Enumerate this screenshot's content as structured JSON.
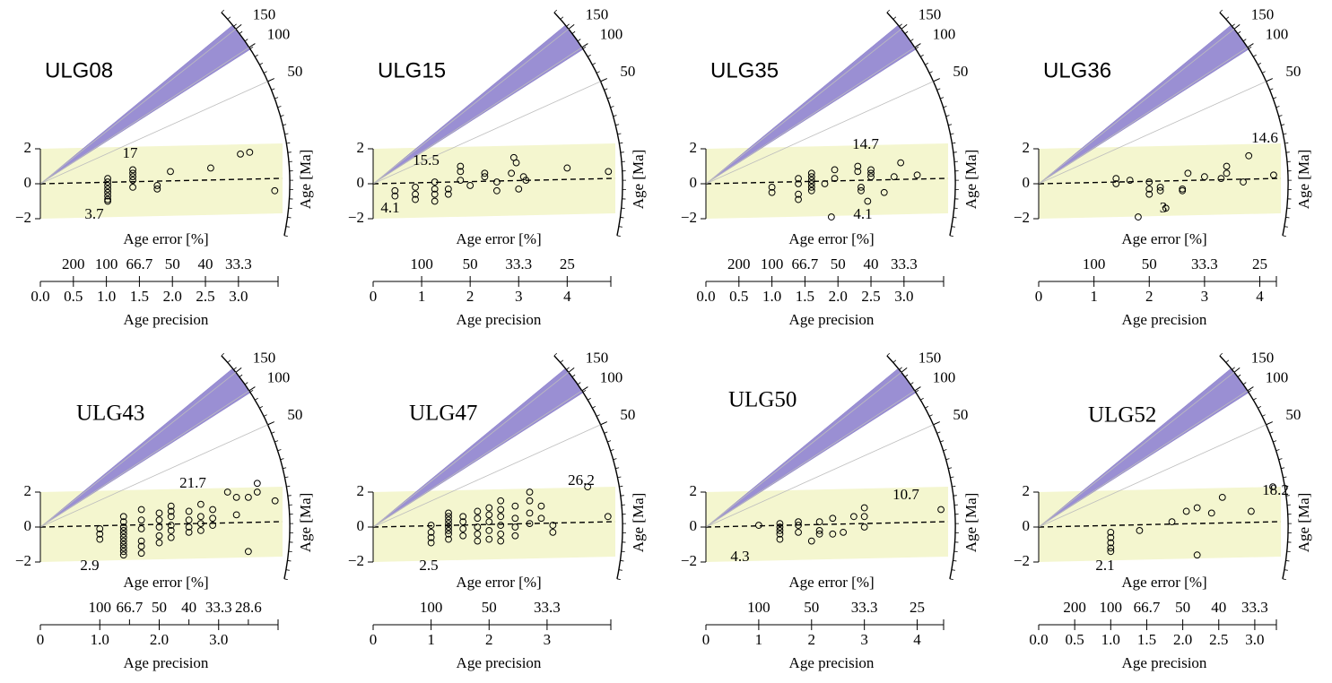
{
  "chart_data": [
    {
      "type": "radial",
      "title": "ULG08",
      "xlabel": "Age precision",
      "error_label": "Age error [%]",
      "ylabel": "Age [Ma]",
      "xlim": [
        0,
        3.6
      ],
      "xticks": [
        {
          "value": 0,
          "label": "0.0"
        },
        0.5,
        {
          "value": 1,
          "label": "1.0"
        },
        1.5,
        {
          "value": 2,
          "label": "2.0"
        },
        2.5,
        {
          "value": 3,
          "label": "3.0"
        }
      ],
      "error_ticks": [
        {
          "value": 0.5,
          "label": "200"
        },
        {
          "value": 1,
          "label": "100"
        },
        {
          "value": 1.5,
          "label": "66.7"
        },
        {
          "value": 2,
          "label": "50"
        },
        {
          "value": 2.5,
          "label": "40"
        },
        {
          "value": 3,
          "label": "33.3"
        }
      ],
      "ylim": [
        -2,
        2
      ],
      "yticks": [
        2,
        0,
        {
          "value": -2,
          "label": "−2"
        }
      ],
      "rlim": [
        3,
        170
      ],
      "rticks": [
        150,
        100,
        50
      ],
      "annotations": [
        "17",
        "3.7"
      ],
      "x": [
        1.02,
        1.02,
        1.02,
        1.02,
        1.02,
        1.02,
        1.02,
        1.02,
        1.4,
        1.4,
        1.4,
        1.4,
        1.4,
        1.77,
        1.77,
        1.97,
        2.58,
        3.03,
        3.17,
        3.55
      ],
      "y": [
        0.3,
        0.1,
        -0.1,
        -0.3,
        -0.5,
        -0.7,
        -0.9,
        -1.0,
        0.8,
        0.6,
        0.4,
        0.2,
        -0.2,
        -0.1,
        -0.3,
        0.7,
        0.9,
        1.7,
        1.8,
        -0.4
      ]
    },
    {
      "type": "radial",
      "title": "ULG15",
      "xlabel": "Age precision",
      "error_label": "Age error [%]",
      "ylabel": "Age [Ma]",
      "xlim": [
        0,
        4.9
      ],
      "xticks": [
        0,
        1,
        2,
        3,
        4
      ],
      "error_ticks": [
        {
          "value": 1,
          "label": "100"
        },
        {
          "value": 2,
          "label": "50"
        },
        {
          "value": 3,
          "label": "33.3"
        },
        {
          "value": 4,
          "label": "25"
        }
      ],
      "ylim": [
        -2,
        2
      ],
      "yticks": [
        2,
        0,
        {
          "value": -2,
          "label": "−2"
        }
      ],
      "rlim": [
        3,
        170
      ],
      "rticks": [
        150,
        100,
        50
      ],
      "annotations": [
        "15.5",
        "4.1"
      ],
      "x": [
        0.45,
        0.45,
        0.87,
        0.87,
        0.87,
        1.27,
        1.27,
        1.27,
        1.27,
        1.55,
        1.55,
        1.8,
        1.8,
        1.8,
        2.0,
        2.3,
        2.3,
        2.55,
        2.55,
        2.85,
        2.9,
        2.95,
        3.0,
        3.1,
        3.15,
        4.0,
        4.85
      ],
      "y": [
        -0.4,
        -0.7,
        -0.2,
        -0.6,
        -0.9,
        0.1,
        -0.3,
        -0.6,
        -1.0,
        -0.3,
        -0.6,
        1.0,
        0.7,
        0.2,
        -0.1,
        0.4,
        0.6,
        0.1,
        -0.4,
        0.6,
        1.5,
        1.2,
        -0.3,
        0.4,
        0.2,
        0.9,
        0.7
      ]
    },
    {
      "type": "radial",
      "title": "ULG35",
      "xlabel": "Age precision",
      "error_label": "Age error [%]",
      "ylabel": "Age [Ma]",
      "xlim": [
        0,
        3.6
      ],
      "xticks": [
        {
          "value": 0,
          "label": "0.0"
        },
        0.5,
        {
          "value": 1,
          "label": "1.0"
        },
        1.5,
        {
          "value": 2,
          "label": "2.0"
        },
        2.5,
        {
          "value": 3,
          "label": "3.0"
        }
      ],
      "error_ticks": [
        {
          "value": 0.5,
          "label": "200"
        },
        {
          "value": 1,
          "label": "100"
        },
        {
          "value": 1.5,
          "label": "66.7"
        },
        {
          "value": 2,
          "label": "50"
        },
        {
          "value": 2.5,
          "label": "40"
        },
        {
          "value": 3,
          "label": "33.3"
        }
      ],
      "ylim": [
        -2,
        2
      ],
      "yticks": [
        2,
        0,
        {
          "value": -2,
          "label": "−2"
        }
      ],
      "rlim": [
        3,
        170
      ],
      "rticks": [
        150,
        100,
        50
      ],
      "annotations": [
        "14.7",
        "4.1"
      ],
      "x": [
        1.0,
        1.0,
        1.4,
        1.4,
        1.4,
        1.4,
        1.6,
        1.6,
        1.6,
        1.6,
        1.6,
        1.6,
        1.8,
        1.95,
        1.95,
        1.9,
        2.3,
        2.3,
        2.35,
        2.35,
        2.5,
        2.5,
        2.5,
        2.45,
        2.7,
        2.85,
        2.95,
        3.2
      ],
      "y": [
        -0.2,
        -0.5,
        0.3,
        0,
        -0.6,
        -0.9,
        0.6,
        0.4,
        0.2,
        0,
        -0.2,
        -0.4,
        0,
        0.8,
        0.3,
        -1.9,
        1.0,
        0.7,
        -0.2,
        -0.4,
        0.8,
        0.6,
        0.4,
        -1.0,
        -0.5,
        0.4,
        1.2,
        0.5
      ]
    },
    {
      "type": "radial",
      "title": "ULG36",
      "xlabel": "Age precision",
      "error_label": "Age error [%]",
      "ylabel": "Age [Ma]",
      "xlim": [
        0,
        4.3
      ],
      "xticks": [
        0,
        1,
        2,
        3,
        4
      ],
      "error_ticks": [
        {
          "value": 1,
          "label": "100"
        },
        {
          "value": 2,
          "label": "50"
        },
        {
          "value": 3,
          "label": "33.3"
        },
        {
          "value": 4,
          "label": "25"
        }
      ],
      "ylim": [
        -2,
        2
      ],
      "yticks": [
        2,
        0,
        {
          "value": -2,
          "label": "−2"
        }
      ],
      "rlim": [
        3,
        170
      ],
      "rticks": [
        150,
        100,
        50
      ],
      "annotations": [
        "14.6",
        "3"
      ],
      "x": [
        1.4,
        1.4,
        1.65,
        1.8,
        2.0,
        2.0,
        2.0,
        2.2,
        2.2,
        2.3,
        2.6,
        2.6,
        2.7,
        3.0,
        3.3,
        3.4,
        3.4,
        3.7,
        3.8,
        4.25
      ],
      "y": [
        0.3,
        0,
        0.2,
        -1.9,
        0.1,
        -0.3,
        -0.6,
        -0.2,
        -0.4,
        -1.4,
        -0.3,
        -0.4,
        0.6,
        0.4,
        0.3,
        0.6,
        1.0,
        0.1,
        1.6,
        0.5
      ]
    },
    {
      "type": "radial",
      "title": "ULG43",
      "xlabel": "Age precision",
      "error_label": "Age error [%]",
      "ylabel": "Age [Ma]",
      "xlim": [
        0,
        4.0
      ],
      "xticks": [
        0,
        {
          "value": 1,
          "label": "1.0"
        },
        {
          "value": 2,
          "label": "2.0"
        },
        {
          "value": 3,
          "label": "3.0"
        }
      ],
      "error_ticks": [
        {
          "value": 1,
          "label": "100"
        },
        {
          "value": 1.5,
          "label": "66.7"
        },
        {
          "value": 2,
          "label": "50"
        },
        {
          "value": 2.5,
          "label": "40"
        },
        {
          "value": 3,
          "label": "33.3"
        },
        {
          "value": 3.5,
          "label": "28.6"
        }
      ],
      "ylim": [
        -2,
        2
      ],
      "yticks": [
        2,
        0,
        {
          "value": -2,
          "label": "−2"
        }
      ],
      "rlim": [
        3,
        170
      ],
      "rticks": [
        150,
        100,
        50
      ],
      "annotations": [
        "21.7",
        "2.9"
      ],
      "x": [
        1.0,
        1.0,
        1.0,
        1.4,
        1.4,
        1.4,
        1.4,
        1.4,
        1.4,
        1.4,
        1.4,
        1.4,
        1.4,
        1.4,
        1.7,
        1.7,
        1.7,
        1.7,
        1.7,
        1.7,
        2.0,
        2.0,
        2.0,
        2.0,
        2.0,
        2.2,
        2.2,
        2.2,
        2.2,
        2.2,
        2.2,
        2.5,
        2.5,
        2.5,
        2.5,
        2.7,
        2.7,
        2.7,
        2.7,
        2.9,
        2.9,
        2.9,
        3.15,
        3.3,
        3.3,
        3.5,
        3.5,
        3.65,
        3.65,
        3.95
      ],
      "y": [
        -0.1,
        -0.4,
        -0.7,
        0.6,
        0.3,
        0,
        -0.2,
        -0.4,
        -0.6,
        -0.8,
        -1.0,
        -1.2,
        -1.4,
        -1.6,
        1.0,
        0.4,
        -0.1,
        -0.8,
        -1.1,
        -1.5,
        0.8,
        0.4,
        0,
        -0.5,
        -0.9,
        1.2,
        0.9,
        0.6,
        0.1,
        -0.2,
        -0.6,
        0.9,
        0.4,
        0,
        -0.3,
        1.3,
        0.6,
        0.2,
        -0.2,
        1.0,
        0.5,
        0.1,
        2.0,
        0.7,
        1.7,
        1.7,
        -1.4,
        2.0,
        2.5,
        1.5
      ]
    },
    {
      "type": "radial",
      "title": "ULG47",
      "xlabel": "Age precision",
      "error_label": "Age error [%]",
      "ylabel": "Age [Ma]",
      "xlim": [
        0,
        4.1
      ],
      "xticks": [
        0,
        1,
        2,
        3
      ],
      "error_ticks": [
        {
          "value": 1,
          "label": "100"
        },
        {
          "value": 2,
          "label": "50"
        },
        {
          "value": 3,
          "label": "33.3"
        }
      ],
      "ylim": [
        -2,
        2
      ],
      "yticks": [
        2,
        0,
        {
          "value": -2,
          "label": "−2"
        }
      ],
      "rlim": [
        3,
        170
      ],
      "rticks": [
        150,
        100,
        50
      ],
      "annotations": [
        "26.2",
        "2.5"
      ],
      "x": [
        1.0,
        1.0,
        1.0,
        1.0,
        1.3,
        1.3,
        1.3,
        1.3,
        1.3,
        1.3,
        1.3,
        1.3,
        1.55,
        1.55,
        1.55,
        1.55,
        1.8,
        1.8,
        1.8,
        1.8,
        1.8,
        2.0,
        2.0,
        2.0,
        2.0,
        2.0,
        2.2,
        2.2,
        2.2,
        2.2,
        2.2,
        2.2,
        2.45,
        2.45,
        2.45,
        2.45,
        2.7,
        2.7,
        2.7,
        2.7,
        2.9,
        2.9,
        3.1,
        3.1,
        3.7,
        4.05
      ],
      "y": [
        0.1,
        -0.3,
        -0.6,
        -0.9,
        0.8,
        0.6,
        0.4,
        0.2,
        0,
        -0.2,
        -0.4,
        -0.7,
        0.6,
        0.3,
        -0.1,
        -0.5,
        0.9,
        0.5,
        0,
        -0.4,
        -0.8,
        1.1,
        0.7,
        0.3,
        -0.2,
        -0.7,
        1.5,
        1.0,
        0.6,
        0.1,
        -0.4,
        -0.8,
        1.2,
        0.5,
        0,
        -0.5,
        1.5,
        2.0,
        0.8,
        0.2,
        1.2,
        0.5,
        0.1,
        -0.3,
        2.3,
        0.6
      ]
    },
    {
      "type": "radial",
      "title": "ULG50",
      "xlabel": "Age precision",
      "error_label": "Age error [%]",
      "ylabel": "Age [Ma]",
      "xlim": [
        0,
        4.5
      ],
      "xticks": [
        0,
        1,
        2,
        3,
        4
      ],
      "error_ticks": [
        {
          "value": 1,
          "label": "100"
        },
        {
          "value": 2,
          "label": "50"
        },
        {
          "value": 3,
          "label": "33.3"
        },
        {
          "value": 4,
          "label": "25"
        }
      ],
      "ylim": [
        -2,
        2
      ],
      "yticks": [
        2,
        0,
        {
          "value": -2,
          "label": "−2"
        }
      ],
      "rlim": [
        3,
        170
      ],
      "rticks": [
        150,
        100,
        50
      ],
      "annotations": [
        "10.7",
        "4.3"
      ],
      "x": [
        1.0,
        1.4,
        1.4,
        1.4,
        1.4,
        1.4,
        1.75,
        1.75,
        1.75,
        2.0,
        2.15,
        2.15,
        2.15,
        2.4,
        2.4,
        2.6,
        2.8,
        3.0,
        3.0,
        3.0,
        4.45
      ],
      "y": [
        0.1,
        0.2,
        0,
        -0.2,
        -0.4,
        -0.7,
        0.3,
        0.1,
        -0.3,
        -0.8,
        0.3,
        -0.2,
        -0.4,
        0.5,
        -0.4,
        -0.3,
        0.6,
        1.1,
        0.6,
        0,
        1.0
      ]
    },
    {
      "type": "radial",
      "title": "ULG52",
      "xlabel": "Age precision",
      "error_label": "Age error [%]",
      "ylabel": "Age [Ma]",
      "xlim": [
        0,
        3.3
      ],
      "xticks": [
        {
          "value": 0,
          "label": "0.0"
        },
        0.5,
        {
          "value": 1,
          "label": "1.0"
        },
        1.5,
        {
          "value": 2,
          "label": "2.0"
        },
        2.5,
        {
          "value": 3,
          "label": "3.0"
        }
      ],
      "error_ticks": [
        {
          "value": 0.5,
          "label": "200"
        },
        {
          "value": 1,
          "label": "100"
        },
        {
          "value": 1.5,
          "label": "66.7"
        },
        {
          "value": 2,
          "label": "50"
        },
        {
          "value": 2.5,
          "label": "40"
        },
        {
          "value": 3,
          "label": "33.3"
        }
      ],
      "ylim": [
        -2,
        2
      ],
      "yticks": [
        2,
        0,
        {
          "value": -2,
          "label": "−2"
        }
      ],
      "rlim": [
        3,
        170
      ],
      "rticks": [
        150,
        100,
        50
      ],
      "annotations": [
        "18.2",
        "2.1"
      ],
      "x": [
        1.0,
        1.0,
        1.0,
        1.0,
        1.0,
        1.4,
        1.85,
        2.05,
        2.2,
        2.2,
        2.4,
        2.55,
        2.95,
        3.25
      ],
      "y": [
        -0.3,
        -0.6,
        -0.9,
        -1.2,
        -1.4,
        -0.2,
        0.3,
        0.9,
        1.1,
        -1.6,
        0.8,
        1.7,
        0.9,
        2.3
      ]
    }
  ]
}
